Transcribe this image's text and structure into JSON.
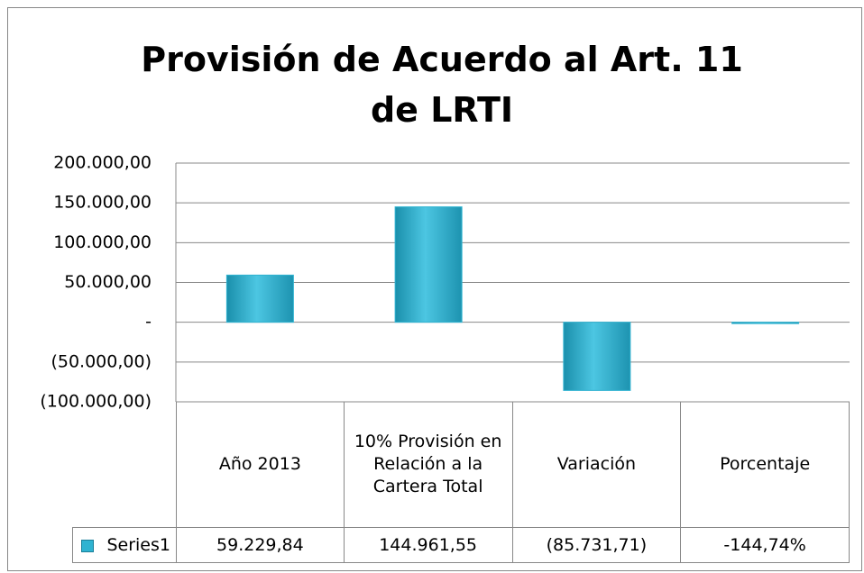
{
  "chart_data": {
    "type": "bar",
    "title": "Provisión de Acuerdo al Art. 11 de LRTI",
    "categories": [
      "Año 2013",
      "10% Provisión en Relación a la Cartera Total",
      "Variación",
      "Porcentaje"
    ],
    "series": [
      {
        "name": "Series1",
        "color": "#2fb3d1",
        "values": [
          59229.84,
          144961.55,
          -85731.71,
          -144.74
        ],
        "value_labels": [
          "59.229,84",
          "144.961,55",
          "(85.731,71)",
          "-144,74%"
        ]
      }
    ],
    "ylim": [
      -100000,
      200000
    ],
    "yticks": [
      {
        "value": -100000,
        "label": "(100.000,00)"
      },
      {
        "value": -50000,
        "label": "(50.000,00)"
      },
      {
        "value": 0,
        "label": "-"
      },
      {
        "value": 50000,
        "label": "50.000,00"
      },
      {
        "value": 100000,
        "label": "100.000,00"
      },
      {
        "value": 150000,
        "label": "150.000,00"
      },
      {
        "value": 200000,
        "label": "200.000,00"
      }
    ],
    "grid": true
  }
}
